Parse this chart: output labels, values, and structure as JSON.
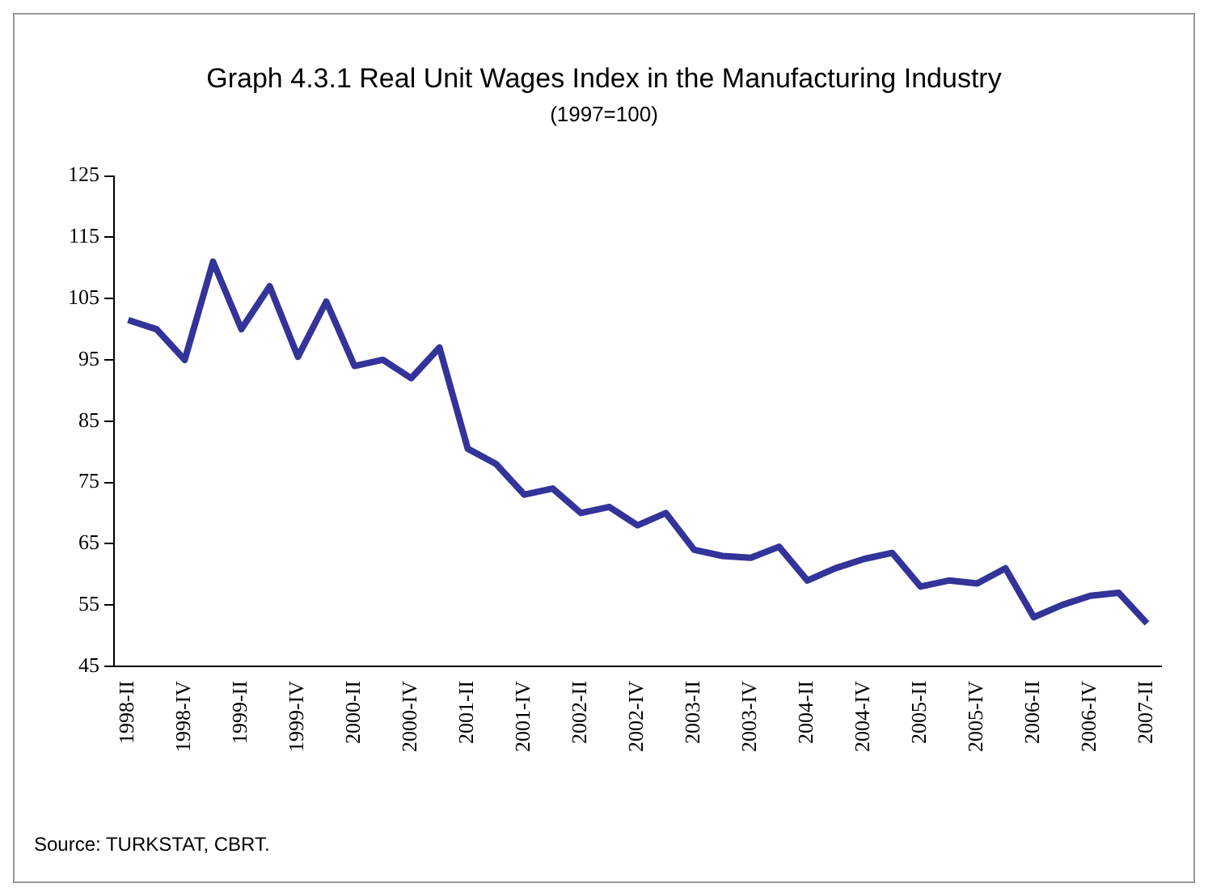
{
  "chart_data": {
    "type": "line",
    "title": "Graph 4.3.1 Real Unit Wages Index in the Manufacturing Industry",
    "subtitle": "(1997=100)",
    "categories": [
      "1998-II",
      null,
      "1998-IV",
      null,
      "1999-II",
      null,
      "1999-IV",
      null,
      "2000-II",
      null,
      "2000-IV",
      null,
      "2001-II",
      null,
      "2001-IV",
      null,
      "2002-II",
      null,
      "2002-IV",
      null,
      "2003-II",
      null,
      "2003-IV",
      null,
      "2004-II",
      null,
      "2004-IV",
      null,
      "2005-II",
      null,
      "2005-IV",
      null,
      "2006-II",
      null,
      "2006-IV",
      null,
      "2007-II"
    ],
    "series": [
      {
        "color": "#333399",
        "values": [
          101.5,
          100,
          95,
          111,
          100,
          107,
          95.5,
          104.5,
          94,
          95,
          92,
          97,
          80.5,
          78,
          73,
          74,
          70,
          71,
          68,
          70,
          64,
          63,
          62.7,
          64.5,
          59,
          61,
          62.5,
          63.5,
          58,
          59,
          58.5,
          61,
          53,
          55,
          56.5,
          57,
          52
        ]
      }
    ],
    "ylim": [
      45,
      125
    ],
    "yticks": [
      45,
      55,
      65,
      75,
      85,
      95,
      105,
      115,
      125
    ],
    "grid": false,
    "legend": false,
    "marker": "none",
    "line_style": "solid",
    "annotations": [
      "Source: TURKSTAT, CBRT."
    ]
  }
}
